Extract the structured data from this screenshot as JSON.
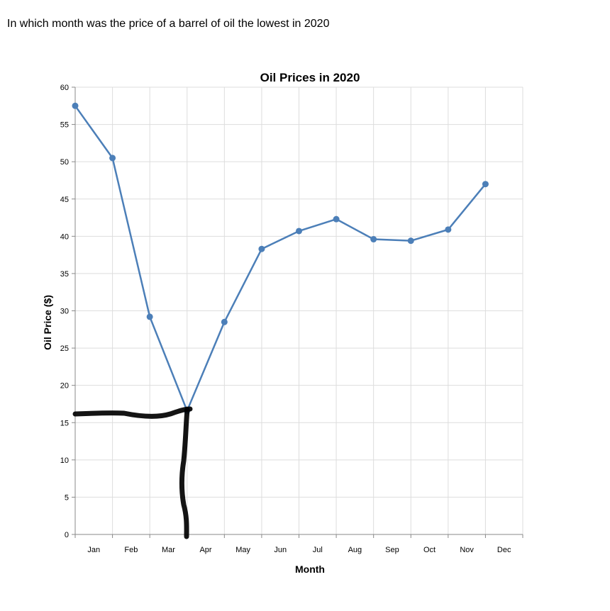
{
  "question": "In which month was the price of a barrel of oil the lowest in 2020",
  "chart_data": {
    "type": "line",
    "title": "Oil Prices in 2020",
    "xlabel": "Month",
    "ylabel": "Oil Price ($)",
    "categories": [
      "Jan",
      "Feb",
      "Mar",
      "Apr",
      "May",
      "Jun",
      "Jul",
      "Aug",
      "Sep",
      "Oct",
      "Nov",
      "Dec"
    ],
    "series": [
      {
        "values": [
          57.5,
          50.5,
          29.2,
          16.6,
          28.5,
          38.3,
          40.7,
          42.3,
          39.6,
          39.4,
          40.9,
          47.0
        ]
      }
    ],
    "ylim": [
      0,
      60
    ],
    "yticks": [
      0,
      5,
      10,
      15,
      20,
      25,
      30,
      35,
      40,
      45,
      50,
      55,
      60
    ],
    "grid": true,
    "color": "#4c7fb8",
    "annotations": "hand-drawn black marks pointing to the Apr minimum"
  }
}
